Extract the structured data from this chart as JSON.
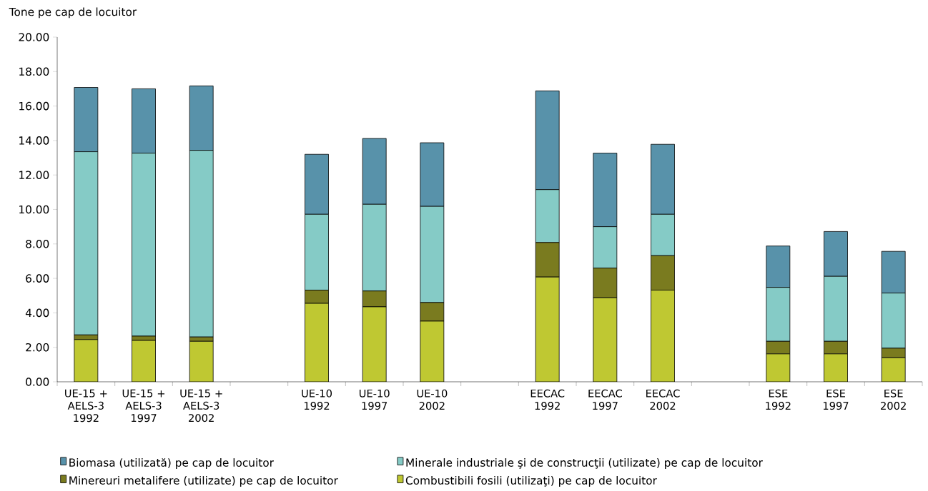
{
  "chart_data": {
    "type": "bar",
    "stacked": true,
    "ylabel": "Tone pe cap de locuitor",
    "categories": [
      "UE-15 + AELS-3 1992",
      "UE-15 + AELS-3 1997",
      "UE-15 + AELS-3 2002",
      null,
      "UE-10 1992",
      "UE-10 1997",
      "UE-10 2002",
      null,
      "EECAC 1992",
      "EECAC 1997",
      "EECAC 2002",
      null,
      "ESE 1992",
      "ESE 1997",
      "ESE 2002"
    ],
    "series": [
      {
        "name": "Combustibili fosili (utilizaţi) pe cap de locuitor",
        "color": "#bfc832",
        "values": [
          2.45,
          2.4,
          2.35,
          null,
          4.55,
          4.35,
          3.52,
          null,
          6.08,
          4.88,
          5.32,
          null,
          1.62,
          1.62,
          1.4
        ]
      },
      {
        "name": "Minereuri metalifere (utilizate) pe cap de locuitor",
        "color": "#7a7b1f",
        "values": [
          0.27,
          0.25,
          0.25,
          null,
          0.77,
          0.92,
          1.08,
          null,
          2.0,
          1.72,
          2.0,
          null,
          0.73,
          0.73,
          0.55
        ]
      },
      {
        "name": "Minerale industriale şi de construcţii (utilizate) pe cap de locuitor",
        "color": "#85cbc6",
        "values": [
          10.63,
          10.62,
          10.83,
          null,
          4.4,
          5.03,
          5.58,
          null,
          3.07,
          2.4,
          2.4,
          null,
          3.13,
          3.77,
          3.2
        ]
      },
      {
        "name": "Biomasa (utilizată) pe cap de locuitor",
        "color": "#5892aa",
        "values": [
          3.73,
          3.73,
          3.74,
          null,
          3.48,
          3.82,
          3.69,
          null,
          5.73,
          4.27,
          4.06,
          null,
          2.4,
          2.6,
          2.42
        ]
      }
    ],
    "ylim": [
      0,
      20
    ],
    "yticks": [
      {
        "value": 0,
        "label": "0.00"
      },
      {
        "value": 2,
        "label": "2.00"
      },
      {
        "value": 4,
        "label": "4.00"
      },
      {
        "value": 6,
        "label": "6.00"
      },
      {
        "value": 8,
        "label": "8.00"
      },
      {
        "value": 10,
        "label": "10.00"
      },
      {
        "value": 12,
        "label": "12.00"
      },
      {
        "value": 14,
        "label": "14.00"
      },
      {
        "value": 16,
        "label": "16.00"
      },
      {
        "value": 18,
        "label": "18.00"
      },
      {
        "value": 20,
        "label": "20.00"
      }
    ],
    "grid": false,
    "legend": "bottom"
  }
}
